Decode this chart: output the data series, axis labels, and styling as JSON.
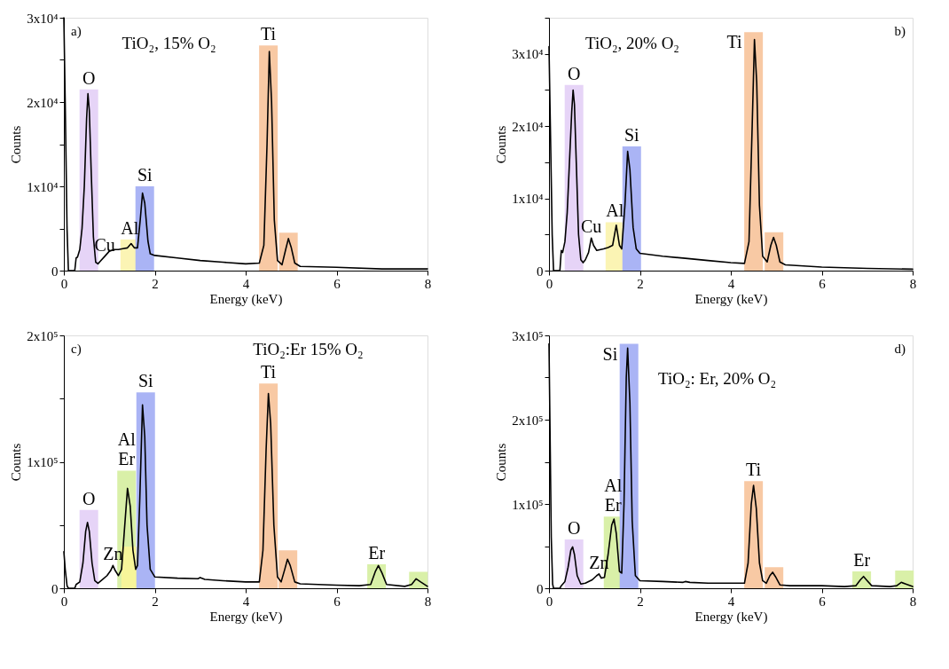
{
  "chart_data": [
    {
      "type": "line",
      "title": "a)",
      "subtitle": "TiO₂, 15% O₂",
      "xlabel": "Energy (keV)",
      "ylabel": "Counts",
      "xlim": [
        0,
        8
      ],
      "xticks": [
        0,
        2,
        4,
        6,
        8
      ],
      "ylim": [
        0,
        30000
      ],
      "yticks": [
        0,
        {
          "value": 5000,
          "label": null
        },
        {
          "value": 10000,
          "label": "1x10⁴"
        },
        {
          "value": 15000,
          "label": null
        },
        {
          "value": 20000,
          "label": "2x10⁴"
        },
        {
          "value": 25000,
          "label": null
        },
        {
          "value": 30000,
          "label": "3x10⁴"
        }
      ],
      "grid": false,
      "series": [
        {
          "type": "bar",
          "x": [
            0.55,
            1.45,
            1.78,
            4.5,
            4.94
          ],
          "values": [
            21500,
            3700,
            10000,
            26700,
            4500
          ],
          "colors": [
            "#e6d4f7",
            "#fbf4b4",
            "#aab4f5",
            "#f8c9a4",
            "#f8c9a4"
          ]
        },
        {
          "color": "#000000",
          "x": [
            0,
            0.03,
            0.07,
            0.1,
            0.24,
            0.27,
            0.3,
            0.35,
            0.4,
            0.45,
            0.5,
            0.53,
            0.56,
            0.6,
            0.65,
            0.7,
            0.75,
            0.8,
            0.9,
            1.0,
            1.1,
            1.2,
            1.3,
            1.4,
            1.48,
            1.55,
            1.62,
            1.68,
            1.73,
            1.78,
            1.85,
            1.9,
            2.0,
            2.5,
            3.0,
            3.5,
            4.0,
            4.3,
            4.4,
            4.47,
            4.52,
            4.57,
            4.63,
            4.7,
            4.8,
            4.88,
            4.94,
            5.0,
            5.08,
            5.2,
            6.0,
            7.0,
            8.0
          ],
          "values": [
            30000,
            20000,
            5000,
            0,
            0,
            1500,
            1600,
            2500,
            5000,
            10000,
            18000,
            21000,
            19000,
            12000,
            4000,
            1000,
            800,
            1100,
            1700,
            2300,
            2500,
            2500,
            2600,
            2700,
            3200,
            2700,
            2700,
            6000,
            9200,
            8000,
            3500,
            2000,
            1800,
            1500,
            1200,
            1000,
            800,
            900,
            3000,
            15000,
            26000,
            20000,
            6000,
            1200,
            700,
            2500,
            3800,
            2800,
            900,
            500,
            400,
            200,
            200
          ]
        }
      ],
      "annotations": [
        {
          "text": "O",
          "x": 0.55,
          "y": 21500
        },
        {
          "text": "Cu",
          "x": 0.9,
          "y": 1700
        },
        {
          "text": "Al",
          "x": 1.45,
          "y": 3700
        },
        {
          "text": "Si",
          "x": 1.78,
          "y": 10000
        },
        {
          "text": "Ti",
          "x": 4.5,
          "y": 26700
        }
      ]
    },
    {
      "type": "line",
      "title": "b)",
      "subtitle": "TiO₂, 20% O₂",
      "xlabel": "Energy (keV)",
      "ylabel": "Counts",
      "xlim": [
        0,
        8
      ],
      "xticks": [
        0,
        2,
        4,
        6,
        8
      ],
      "ylim": [
        0,
        35000
      ],
      "yticks": [
        0,
        {
          "value": 5000,
          "label": null
        },
        {
          "value": 10000,
          "label": "1x10⁴"
        },
        {
          "value": 15000,
          "label": null
        },
        {
          "value": 20000,
          "label": "2x10⁴"
        },
        {
          "value": 25000,
          "label": null
        },
        {
          "value": 30000,
          "label": "3x10⁴"
        },
        {
          "value": 35000,
          "label": null
        }
      ],
      "grid": false,
      "series": [
        {
          "type": "bar",
          "x": [
            0.55,
            1.45,
            1.82,
            4.5,
            4.95
          ],
          "values": [
            25700,
            6700,
            17200,
            33000,
            5300
          ],
          "colors": [
            "#e6d4f7",
            "#fbf4b4",
            "#aab4f5",
            "#f8c9a4",
            "#f8c9a4"
          ]
        },
        {
          "color": "#000000",
          "x": [
            0,
            0.03,
            0.07,
            0.1,
            0.24,
            0.27,
            0.3,
            0.35,
            0.4,
            0.45,
            0.5,
            0.53,
            0.56,
            0.6,
            0.65,
            0.7,
            0.75,
            0.8,
            0.87,
            0.93,
            0.98,
            1.05,
            1.2,
            1.3,
            1.4,
            1.48,
            1.55,
            1.6,
            1.67,
            1.73,
            1.78,
            1.85,
            1.92,
            2.0,
            2.5,
            3.0,
            3.5,
            4.0,
            4.3,
            4.4,
            4.47,
            4.52,
            4.57,
            4.63,
            4.7,
            4.8,
            4.88,
            4.94,
            5.0,
            5.08,
            5.2,
            6.0,
            7.0,
            8.0
          ],
          "values": [
            31000,
            20000,
            5000,
            0,
            0,
            2800,
            2500,
            4000,
            8000,
            15000,
            22000,
            25000,
            23000,
            15000,
            5000,
            1500,
            1100,
            1500,
            2500,
            4500,
            3500,
            2800,
            3000,
            3200,
            3500,
            6300,
            3500,
            3000,
            9000,
            16500,
            14000,
            6000,
            3000,
            2400,
            2000,
            1700,
            1400,
            1100,
            1000,
            4000,
            20000,
            32000,
            26000,
            9000,
            2000,
            1200,
            3500,
            4600,
            3500,
            1200,
            800,
            500,
            300,
            200
          ]
        }
      ],
      "annotations": [
        {
          "text": "O",
          "x": 0.55,
          "y": 25700
        },
        {
          "text": "Cu",
          "x": 0.93,
          "y": 4500
        },
        {
          "text": "Al",
          "x": 1.45,
          "y": 6700
        },
        {
          "text": "Si",
          "x": 1.82,
          "y": 17200
        },
        {
          "text": "Ti",
          "x": 4.5,
          "y": 33000
        }
      ]
    },
    {
      "type": "line",
      "title": "c)",
      "subtitle": "TiO₂:Er 15% O₂",
      "xlabel": "Energy (keV)",
      "ylabel": "Counts",
      "xlim": [
        0,
        8
      ],
      "xticks": [
        0,
        2,
        4,
        6,
        8
      ],
      "ylim": [
        0,
        200000
      ],
      "yticks": [
        0,
        {
          "value": 50000,
          "label": null
        },
        {
          "value": 100000,
          "label": "1x10⁵"
        },
        {
          "value": 150000,
          "label": null
        },
        {
          "value": 200000,
          "label": "2x10⁵"
        }
      ],
      "grid": false,
      "series": [
        {
          "type": "bar",
          "x": [
            0.55,
            1.38,
            1.47,
            1.8,
            4.5,
            4.93,
            6.88,
            7.8
          ],
          "values": [
            62000,
            93000,
            33000,
            155000,
            162000,
            30000,
            19000,
            13000
          ],
          "colors": [
            "#e6d4f7",
            "#d9f0a8",
            "#f7f59a",
            "#aab4f5",
            "#f8c9a4",
            "#f8c9a4",
            "#d9f0a8",
            "#d9f0a8"
          ]
        },
        {
          "color": "#000000",
          "x": [
            0,
            0.03,
            0.07,
            0.1,
            0.24,
            0.27,
            0.35,
            0.42,
            0.48,
            0.52,
            0.56,
            0.62,
            0.68,
            0.75,
            0.85,
            0.95,
            1.03,
            1.08,
            1.13,
            1.2,
            1.27,
            1.33,
            1.4,
            1.46,
            1.52,
            1.58,
            1.62,
            1.67,
            1.73,
            1.78,
            1.83,
            1.9,
            2.0,
            2.5,
            2.95,
            3.0,
            3.1,
            3.5,
            4.0,
            4.3,
            4.38,
            4.45,
            4.5,
            4.55,
            4.62,
            4.7,
            4.78,
            4.86,
            4.92,
            4.98,
            5.08,
            5.2,
            6.0,
            6.5,
            6.75,
            6.85,
            6.92,
            7.0,
            7.1,
            7.5,
            7.65,
            7.75,
            7.85,
            8.0
          ],
          "values": [
            29000,
            15000,
            2000,
            0,
            0,
            3000,
            5000,
            20000,
            45000,
            52000,
            45000,
            20000,
            6000,
            4000,
            7000,
            10000,
            14000,
            18000,
            14000,
            10000,
            15000,
            45000,
            79000,
            65000,
            30000,
            15000,
            18000,
            70000,
            145000,
            120000,
            50000,
            15000,
            9000,
            8000,
            7500,
            8500,
            7000,
            6000,
            5000,
            5000,
            30000,
            110000,
            154000,
            130000,
            50000,
            9000,
            5000,
            15000,
            23000,
            18000,
            5000,
            3500,
            2500,
            2000,
            3000,
            13000,
            18000,
            12000,
            3000,
            1500,
            3000,
            7500,
            5000,
            1500
          ]
        }
      ],
      "annotations": [
        {
          "text": "O",
          "x": 0.55,
          "y": 62000
        },
        {
          "text": "Zn",
          "x": 1.08,
          "y": 18000
        },
        {
          "text": "Er",
          "x": 1.38,
          "y": 93000
        },
        {
          "text": "Al",
          "x": 1.38,
          "y": 93000
        },
        {
          "text": "Si",
          "x": 1.8,
          "y": 155000
        },
        {
          "text": "Ti",
          "x": 4.5,
          "y": 162000
        },
        {
          "text": "Er",
          "x": 6.88,
          "y": 19000
        }
      ]
    },
    {
      "type": "line",
      "title": "d)",
      "subtitle": "TiO₂: Er, 20% O₂",
      "xlabel": "Energy (keV)",
      "ylabel": "Counts",
      "xlim": [
        0,
        8
      ],
      "xticks": [
        0,
        2,
        4,
        6,
        8
      ],
      "ylim": [
        0,
        300000
      ],
      "yticks": [
        0,
        {
          "value": 50000,
          "label": null
        },
        {
          "value": 100000,
          "label": "1x10⁵"
        },
        {
          "value": 150000,
          "label": null
        },
        {
          "value": 200000,
          "label": "2x10⁵"
        },
        {
          "value": 250000,
          "label": null
        },
        {
          "value": 300000,
          "label": "3x10⁵"
        }
      ],
      "grid": false,
      "series": [
        {
          "type": "bar",
          "x": [
            0.55,
            1.41,
            1.76,
            4.5,
            4.95,
            6.88,
            7.82
          ],
          "values": [
            58000,
            85000,
            290000,
            127000,
            25000,
            20000,
            21000
          ],
          "colors": [
            "#e6d4f7",
            "#d9f0a8",
            "#aab4f5",
            "#f8c9a4",
            "#f8c9a4",
            "#d9f0a8",
            "#d9f0a8"
          ]
        },
        {
          "color": "#000000",
          "x": [
            0,
            0.02,
            0.05,
            0.08,
            0.1,
            0.24,
            0.27,
            0.35,
            0.42,
            0.48,
            0.52,
            0.56,
            0.62,
            0.7,
            0.8,
            0.95,
            1.05,
            1.1,
            1.15,
            1.22,
            1.3,
            1.38,
            1.43,
            1.48,
            1.55,
            1.6,
            1.65,
            1.7,
            1.73,
            1.78,
            1.83,
            1.9,
            2.0,
            2.5,
            2.95,
            3.0,
            3.1,
            3.5,
            4.0,
            4.3,
            4.38,
            4.45,
            4.5,
            4.56,
            4.63,
            4.7,
            4.78,
            4.86,
            4.92,
            4.98,
            5.08,
            5.3,
            6.0,
            6.5,
            6.75,
            6.85,
            6.92,
            7.0,
            7.1,
            7.5,
            7.65,
            7.75,
            7.85,
            8.0
          ],
          "values": [
            290000,
            200000,
            60000,
            5000,
            0,
            0,
            3000,
            8000,
            25000,
            45000,
            49000,
            40000,
            15000,
            5000,
            6000,
            10000,
            15000,
            17000,
            12000,
            13000,
            40000,
            75000,
            82000,
            65000,
            20000,
            18000,
            100000,
            250000,
            285000,
            220000,
            80000,
            15000,
            9000,
            8000,
            7000,
            8000,
            7000,
            6000,
            6000,
            6000,
            30000,
            100000,
            122000,
            95000,
            30000,
            9000,
            6000,
            15000,
            19000,
            14000,
            4000,
            3000,
            3000,
            2000,
            3000,
            10000,
            14000,
            9000,
            3000,
            2000,
            3000,
            7000,
            5000,
            2000
          ]
        }
      ],
      "annotations": [
        {
          "text": "O",
          "x": 0.55,
          "y": 58000
        },
        {
          "text": "Zn",
          "x": 1.1,
          "y": 17000
        },
        {
          "text": "Er",
          "x": 1.41,
          "y": 85000
        },
        {
          "text": "Al",
          "x": 1.41,
          "y": 85000
        },
        {
          "text": "Si",
          "x": 1.76,
          "y": 290000
        },
        {
          "text": "Ti",
          "x": 4.5,
          "y": 127000
        },
        {
          "text": "Er",
          "x": 6.88,
          "y": 20000
        }
      ]
    }
  ]
}
